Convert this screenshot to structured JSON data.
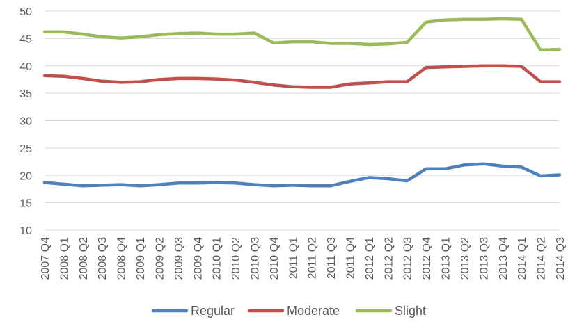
{
  "chart_data": {
    "type": "line",
    "title": "",
    "xlabel": "",
    "ylabel": "",
    "ylim": [
      10,
      50
    ],
    "yticks": [
      "10",
      "15",
      "20",
      "25",
      "30",
      "35",
      "40",
      "45",
      "50"
    ],
    "grid": "horizontal",
    "legend_position": "bottom",
    "categories": [
      "2007 Q4",
      "2008 Q1",
      "2008 Q2",
      "2008 Q3",
      "2008 Q4",
      "2009 Q1",
      "2009 Q2",
      "2009 Q3",
      "2009 Q4",
      "2010 Q1",
      "2010 Q2",
      "2010 Q3",
      "2010 Q4",
      "2011 Q1",
      "2011 Q2",
      "2011 Q3",
      "2011 Q4",
      "2012 Q1",
      "2012 Q2",
      "2012 Q3",
      "2012 Q4",
      "2013 Q1",
      "2013 Q2",
      "2013 Q3",
      "2013 Q4",
      "2014 Q1",
      "2014 Q2",
      "2014 Q3"
    ],
    "series": [
      {
        "name": "Regular",
        "color": "#4f81bd",
        "values": [
          18.7,
          18.4,
          18.1,
          18.2,
          18.3,
          18.1,
          18.3,
          18.6,
          18.6,
          18.7,
          18.6,
          18.3,
          18.1,
          18.2,
          18.1,
          18.1,
          18.9,
          19.6,
          19.4,
          19.0,
          21.2,
          21.2,
          21.9,
          22.1,
          21.7,
          21.5,
          19.9,
          20.1
        ]
      },
      {
        "name": "Moderate",
        "color": "#c0504d",
        "values": [
          38.2,
          38.1,
          37.7,
          37.2,
          37.0,
          37.1,
          37.5,
          37.7,
          37.7,
          37.6,
          37.4,
          37.0,
          36.5,
          36.2,
          36.1,
          36.1,
          36.7,
          36.9,
          37.1,
          37.1,
          39.7,
          39.8,
          39.9,
          40.0,
          40.0,
          39.9,
          37.1,
          37.1
        ]
      },
      {
        "name": "Slight",
        "color": "#9bbb59",
        "values": [
          46.2,
          46.2,
          45.8,
          45.3,
          45.1,
          45.3,
          45.7,
          45.9,
          46.0,
          45.8,
          45.8,
          46.0,
          44.2,
          44.4,
          44.4,
          44.1,
          44.1,
          43.9,
          44.0,
          44.3,
          48.0,
          48.4,
          48.5,
          48.5,
          48.6,
          48.5,
          42.9,
          43.0
        ]
      }
    ]
  }
}
